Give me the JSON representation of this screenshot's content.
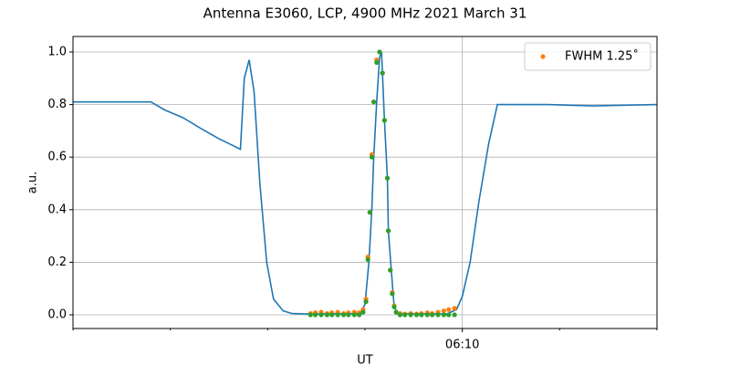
{
  "chart_data": {
    "type": "line",
    "title": "Antenna E3060, LCP, 4900 MHz 2021 March 31",
    "xlabel": "UT",
    "ylabel": "a.u.",
    "xlim": [
      366,
      372
    ],
    "ylim": [
      -0.052,
      1.059
    ],
    "xticks": [
      {
        "value": 370,
        "label": "06:10"
      }
    ],
    "xminor_ticks": [
      366,
      367,
      368,
      369,
      371,
      372
    ],
    "yticks": [
      {
        "value": 0,
        "label": "0.0"
      },
      0.2,
      0.4,
      0.6,
      0.8,
      {
        "value": 1,
        "label": "1.0"
      }
    ],
    "grid": true,
    "legend": "upper right",
    "series": [
      {
        "type": "line",
        "color": "#1f77b4",
        "x": [
          366.0,
          366.8,
          366.94,
          367.13,
          367.31,
          367.5,
          367.72,
          367.76,
          367.81,
          367.86,
          367.92,
          367.99,
          368.06,
          368.16,
          368.25,
          368.44,
          368.95,
          369.0,
          369.04,
          369.07,
          369.09,
          369.12,
          369.15,
          369.17,
          369.2,
          369.23,
          369.24,
          369.27,
          369.3,
          369.34,
          369.84,
          369.94,
          370.0,
          370.08,
          370.17,
          370.27,
          370.36,
          370.88,
          371.34,
          372.0
        ],
        "values": [
          0.81,
          0.81,
          0.78,
          0.75,
          0.71,
          0.67,
          0.63,
          0.9,
          0.97,
          0.85,
          0.5,
          0.2,
          0.06,
          0.015,
          0.005,
          0.003,
          0.005,
          0.04,
          0.2,
          0.4,
          0.6,
          0.81,
          0.98,
          1.0,
          0.74,
          0.52,
          0.32,
          0.17,
          0.03,
          0.005,
          0.003,
          0.02,
          0.07,
          0.2,
          0.43,
          0.65,
          0.8,
          0.8,
          0.795,
          0.8
        ]
      },
      {
        "type": "scatter",
        "name": "FWHM 1.25˚",
        "color": "#ff7f0e",
        "x": [
          368.44,
          368.49,
          368.55,
          368.61,
          368.66,
          368.72,
          368.78,
          368.83,
          368.89,
          368.94,
          368.98,
          369.01,
          369.03,
          369.05,
          369.07,
          369.09,
          369.12,
          369.15,
          369.18,
          369.2,
          369.23,
          369.24,
          369.26,
          369.28,
          369.3,
          369.32,
          369.36,
          369.41,
          369.47,
          369.53,
          369.58,
          369.64,
          369.69,
          369.75,
          369.81,
          369.86,
          369.92
        ],
        "values": [
          0.005,
          0.008,
          0.01,
          0.005,
          0.008,
          0.01,
          0.005,
          0.008,
          0.01,
          0.008,
          0.02,
          0.06,
          0.22,
          0.39,
          0.61,
          0.81,
          0.97,
          1.0,
          0.92,
          0.74,
          0.52,
          0.32,
          0.17,
          0.085,
          0.035,
          0.01,
          0.005,
          0.003,
          0.005,
          0.003,
          0.005,
          0.008,
          0.005,
          0.01,
          0.015,
          0.02,
          0.025
        ]
      },
      {
        "type": "scatter",
        "color": "#2ca02c",
        "x": [
          368.44,
          368.49,
          368.55,
          368.61,
          368.66,
          368.72,
          368.78,
          368.83,
          368.89,
          368.94,
          368.98,
          369.01,
          369.03,
          369.05,
          369.07,
          369.09,
          369.12,
          369.15,
          369.18,
          369.2,
          369.23,
          369.24,
          369.26,
          369.28,
          369.3,
          369.32,
          369.36,
          369.41,
          369.47,
          369.53,
          369.58,
          369.64,
          369.69,
          369.75,
          369.81,
          369.86,
          369.92
        ],
        "values": [
          0,
          0,
          0,
          0,
          0,
          0,
          0,
          0,
          0,
          0,
          0.01,
          0.05,
          0.21,
          0.39,
          0.6,
          0.81,
          0.96,
          1.0,
          0.92,
          0.74,
          0.52,
          0.32,
          0.17,
          0.08,
          0.03,
          0.01,
          0,
          0,
          0,
          0,
          0,
          0,
          0,
          0,
          0,
          0,
          0
        ]
      }
    ]
  }
}
